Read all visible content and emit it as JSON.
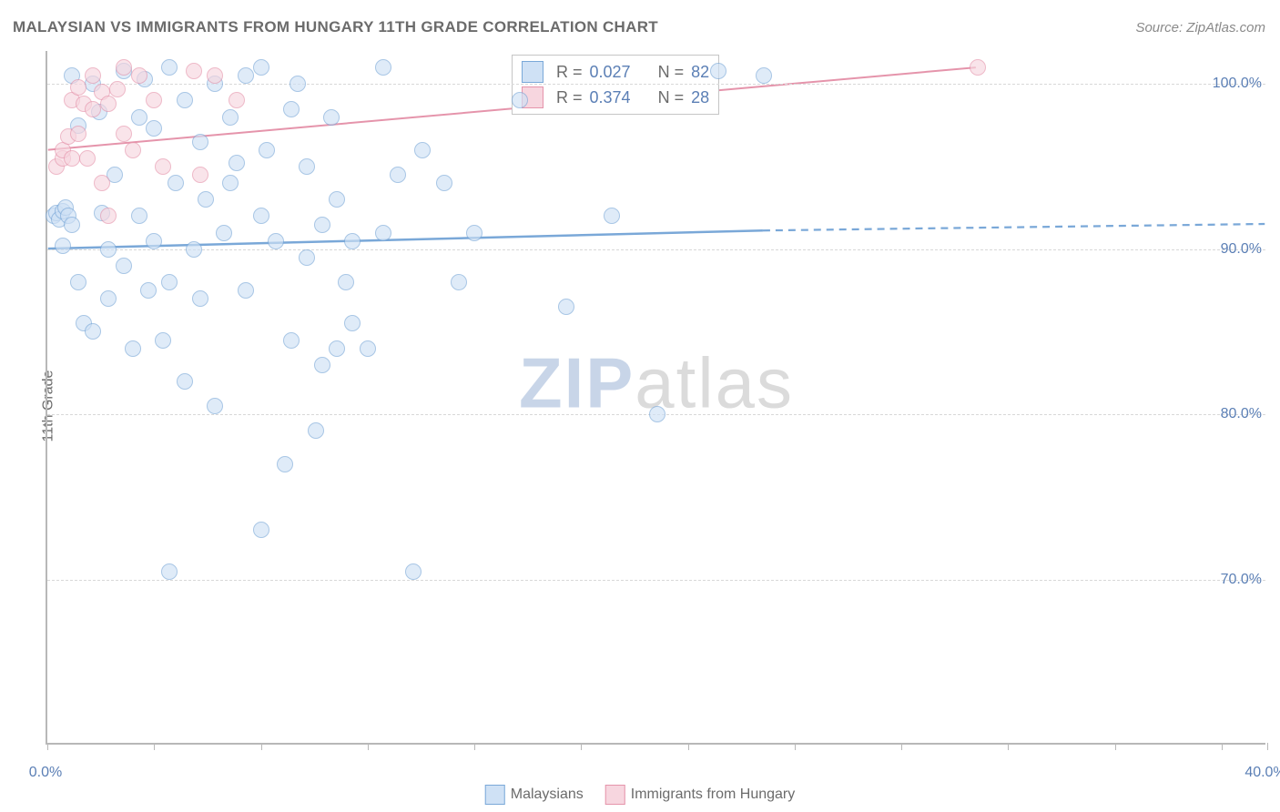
{
  "title": "MALAYSIAN VS IMMIGRANTS FROM HUNGARY 11TH GRADE CORRELATION CHART",
  "source": "Source: ZipAtlas.com",
  "ylabel": "11th Grade",
  "watermark_a": "ZIP",
  "watermark_b": "atlas",
  "chart": {
    "type": "scatter",
    "background_color": "#ffffff",
    "grid_color": "#d8d8d8",
    "axis_color": "#b8b8b8",
    "tick_label_color": "#5b7fb5",
    "text_color": "#6b6b6b",
    "xlim": [
      0,
      40
    ],
    "ylim": [
      60,
      102
    ],
    "yticks": [
      70,
      80,
      90,
      100
    ],
    "ytick_labels": [
      "70.0%",
      "80.0%",
      "90.0%",
      "100.0%"
    ],
    "xtick_positions": [
      0,
      3.5,
      7,
      10.5,
      14,
      17.5,
      21,
      24.5,
      28,
      31.5,
      35,
      38.5,
      40
    ],
    "xtick_labels": {
      "0": "0.0%",
      "40": "40.0%"
    },
    "marker_radius": 9,
    "marker_border_width": 1.2,
    "series": [
      {
        "name": "Malaysians",
        "fill": "#cfe1f5",
        "stroke": "#7aa8d8",
        "fill_opacity": 0.65,
        "trend": {
          "x1": 0,
          "y1": 90.0,
          "x2": 23.5,
          "y2": 91.1,
          "width": 2.5,
          "dash_to": 40,
          "dash_y": 91.5
        },
        "stats": {
          "R_label": "R =",
          "R": "0.027",
          "N_label": "N =",
          "N": "82"
        },
        "points": [
          [
            0.2,
            92.0
          ],
          [
            0.3,
            92.2
          ],
          [
            0.4,
            91.8
          ],
          [
            0.5,
            92.3
          ],
          [
            0.5,
            90.2
          ],
          [
            0.6,
            92.5
          ],
          [
            0.7,
            92.0
          ],
          [
            0.8,
            91.5
          ],
          [
            0.8,
            100.5
          ],
          [
            1.0,
            88.0
          ],
          [
            1.0,
            97.5
          ],
          [
            1.2,
            85.5
          ],
          [
            1.5,
            85.0
          ],
          [
            1.5,
            100.0
          ],
          [
            1.7,
            98.3
          ],
          [
            1.8,
            92.2
          ],
          [
            2.0,
            87.0
          ],
          [
            2.0,
            90.0
          ],
          [
            2.2,
            94.5
          ],
          [
            2.5,
            100.8
          ],
          [
            2.5,
            89.0
          ],
          [
            2.8,
            84.0
          ],
          [
            3.0,
            92.0
          ],
          [
            3.0,
            98.0
          ],
          [
            3.2,
            100.3
          ],
          [
            3.3,
            87.5
          ],
          [
            3.5,
            90.5
          ],
          [
            3.5,
            97.3
          ],
          [
            3.8,
            84.5
          ],
          [
            4.0,
            101.0
          ],
          [
            4.0,
            88.0
          ],
          [
            4.0,
            70.5
          ],
          [
            4.2,
            94.0
          ],
          [
            4.5,
            82.0
          ],
          [
            4.5,
            99.0
          ],
          [
            4.8,
            90.0
          ],
          [
            5.0,
            96.5
          ],
          [
            5.0,
            87.0
          ],
          [
            5.2,
            93.0
          ],
          [
            5.5,
            100.0
          ],
          [
            5.5,
            80.5
          ],
          [
            5.8,
            91.0
          ],
          [
            6.0,
            98.0
          ],
          [
            6.0,
            94.0
          ],
          [
            6.2,
            95.2
          ],
          [
            6.5,
            100.5
          ],
          [
            6.5,
            87.5
          ],
          [
            7.0,
            92.0
          ],
          [
            7.0,
            73.0
          ],
          [
            7.0,
            101.0
          ],
          [
            7.2,
            96.0
          ],
          [
            7.5,
            90.5
          ],
          [
            7.8,
            77.0
          ],
          [
            8.0,
            98.5
          ],
          [
            8.0,
            84.5
          ],
          [
            8.2,
            100.0
          ],
          [
            8.5,
            89.5
          ],
          [
            8.5,
            95.0
          ],
          [
            8.8,
            79.0
          ],
          [
            9.0,
            91.5
          ],
          [
            9.0,
            83.0
          ],
          [
            9.3,
            98.0
          ],
          [
            9.5,
            93.0
          ],
          [
            9.5,
            84.0
          ],
          [
            9.8,
            88.0
          ],
          [
            10.0,
            90.5
          ],
          [
            10.0,
            85.5
          ],
          [
            10.5,
            84.0
          ],
          [
            11.0,
            101.0
          ],
          [
            11.0,
            91.0
          ],
          [
            11.5,
            94.5
          ],
          [
            12.0,
            70.5
          ],
          [
            12.3,
            96.0
          ],
          [
            13.0,
            94.0
          ],
          [
            13.5,
            88.0
          ],
          [
            14.0,
            91.0
          ],
          [
            15.5,
            99.0
          ],
          [
            17.0,
            86.5
          ],
          [
            18.5,
            92.0
          ],
          [
            20.0,
            80.0
          ],
          [
            22.0,
            100.8
          ],
          [
            23.5,
            100.5
          ]
        ]
      },
      {
        "name": "Immigrants from Hungary",
        "fill": "#f7d6df",
        "stroke": "#e594ab",
        "fill_opacity": 0.65,
        "trend": {
          "x1": 0,
          "y1": 96.0,
          "x2": 30.5,
          "y2": 101.0,
          "width": 2,
          "dash_to": null,
          "dash_y": null
        },
        "stats": {
          "R_label": "R =",
          "R": "0.374",
          "N_label": "N =",
          "N": "28"
        },
        "points": [
          [
            0.3,
            95.0
          ],
          [
            0.5,
            95.5
          ],
          [
            0.5,
            96.0
          ],
          [
            0.7,
            96.8
          ],
          [
            0.8,
            95.5
          ],
          [
            0.8,
            99.0
          ],
          [
            1.0,
            97.0
          ],
          [
            1.0,
            99.8
          ],
          [
            1.2,
            98.8
          ],
          [
            1.3,
            95.5
          ],
          [
            1.5,
            98.5
          ],
          [
            1.5,
            100.5
          ],
          [
            1.8,
            99.5
          ],
          [
            1.8,
            94.0
          ],
          [
            2.0,
            92.0
          ],
          [
            2.0,
            98.8
          ],
          [
            2.3,
            99.7
          ],
          [
            2.5,
            97.0
          ],
          [
            2.5,
            101.0
          ],
          [
            2.8,
            96.0
          ],
          [
            3.0,
            100.5
          ],
          [
            3.5,
            99.0
          ],
          [
            3.8,
            95.0
          ],
          [
            4.8,
            100.8
          ],
          [
            5.0,
            94.5
          ],
          [
            5.5,
            100.5
          ],
          [
            6.2,
            99.0
          ],
          [
            30.5,
            101.0
          ]
        ]
      }
    ]
  },
  "bottom_legend": [
    {
      "swatch_fill": "#cfe1f5",
      "swatch_stroke": "#7aa8d8",
      "label": "Malaysians"
    },
    {
      "swatch_fill": "#f7d6df",
      "swatch_stroke": "#e594ab",
      "label": "Immigrants from Hungary"
    }
  ]
}
